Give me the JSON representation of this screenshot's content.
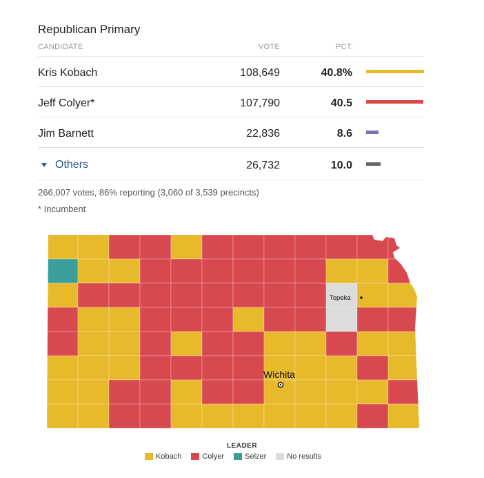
{
  "race": {
    "title": "Republican Primary",
    "headers": {
      "candidate": "CANDIDATE",
      "vote": "VOTE",
      "pct": "PCT."
    }
  },
  "candidates": [
    {
      "name": "Kris Kobach",
      "votes": "108,649",
      "pct": "40.8%",
      "share": 40.8,
      "color": "#e9b92c"
    },
    {
      "name": "Jeff Colyer*",
      "votes": "107,790",
      "pct": "40.5",
      "share": 40.5,
      "color": "#d8484f"
    },
    {
      "name": "Jim Barnett",
      "votes": "22,836",
      "pct": "8.6",
      "share": 8.6,
      "color": "#7a6fb0"
    }
  ],
  "others": {
    "label": "Others",
    "votes": "26,732",
    "pct": "10.0",
    "share": 10.0,
    "color": "#666666"
  },
  "summary": {
    "reporting": "266,007 votes, 86% reporting (3,060 of 3,539 precincts)",
    "incumbent_note": "* Incumbent"
  },
  "map": {
    "cities": {
      "topeka": "Topeka",
      "wichita": "Wichita"
    },
    "colors": {
      "kobach": "#e9b92c",
      "colyer": "#d8484f",
      "selzer": "#3a9e9b",
      "none": "#dcdcdc"
    },
    "county_leaders": [
      "KKCCKCCCCCCC",
      "SKKCCCCCCKKC",
      "KCCCCCCCCNKK",
      "CKKCCCKCCNCC",
      "CKKCKCCKKCKK",
      "KKKCCCCKKKCK",
      "KKCCKCCKKKKC",
      "KKCCKKKKKKCK"
    ]
  },
  "legend": {
    "title": "LEADER",
    "items": [
      {
        "label": "Kobach",
        "color": "#e9b92c"
      },
      {
        "label": "Colyer",
        "color": "#d8484f"
      },
      {
        "label": "Selzer",
        "color": "#3a9e9b"
      },
      {
        "label": "No results",
        "color": "#dcdcdc"
      }
    ]
  }
}
